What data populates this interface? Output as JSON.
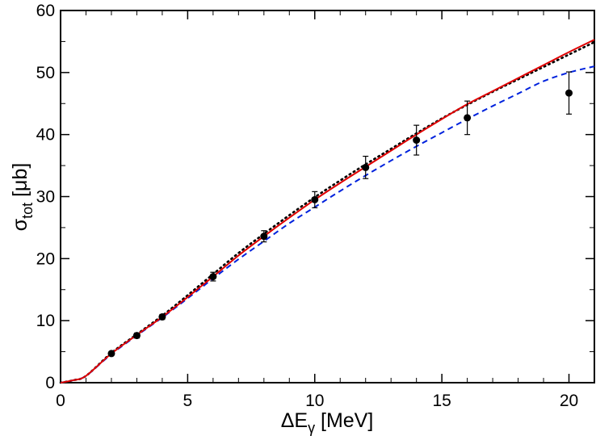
{
  "chart_data": {
    "type": "line",
    "title": "",
    "xlabel": {
      "main": "ΔE",
      "sub": "γ",
      "unit": " [MeV]"
    },
    "ylabel": {
      "main": "σ",
      "sub": "tot",
      "unit": " [μb]"
    },
    "xlim": [
      0,
      21
    ],
    "ylim": [
      0,
      60
    ],
    "x_ticks": [
      0,
      5,
      10,
      15,
      20
    ],
    "y_ticks": [
      0,
      10,
      20,
      30,
      40,
      50,
      60
    ],
    "x_tick_labels": [
      "0",
      "5",
      "10",
      "15",
      "20"
    ],
    "y_tick_labels": [
      "0",
      "10",
      "20",
      "30",
      "40",
      "50",
      "60"
    ],
    "grid": false,
    "legend": "none",
    "series": [
      {
        "style": "solid",
        "color": "#e00000",
        "x": [
          0,
          0.5,
          1,
          2,
          3,
          4,
          5,
          6,
          7,
          8,
          9,
          10,
          11,
          12,
          13,
          14,
          15,
          16,
          17,
          18,
          19,
          20,
          21
        ],
        "y": [
          0,
          0.4,
          1.1,
          4.7,
          7.7,
          10.6,
          13.8,
          17.1,
          20.5,
          23.6,
          26.6,
          29.5,
          32.2,
          34.8,
          37.4,
          40.0,
          42.5,
          44.9,
          47.0,
          49.1,
          51.2,
          53.3,
          55.3
        ]
      },
      {
        "style": "dotted",
        "color": "#000000",
        "x": [
          0,
          0.5,
          1,
          2,
          3,
          4,
          5,
          6,
          7,
          8,
          9,
          10,
          11,
          12,
          13,
          14,
          15,
          16,
          17,
          18,
          19,
          20,
          21
        ],
        "y": [
          0,
          0.4,
          1.1,
          4.8,
          7.8,
          10.8,
          14.1,
          17.5,
          20.9,
          24.0,
          27.0,
          29.9,
          32.6,
          35.2,
          37.7,
          40.2,
          42.6,
          44.8,
          46.9,
          48.9,
          50.9,
          52.9,
          54.9
        ]
      },
      {
        "style": "dashed",
        "color": "#0022dd",
        "x": [
          0,
          0.5,
          1,
          2,
          3,
          4,
          5,
          6,
          7,
          8,
          9,
          10,
          11,
          12,
          13,
          14,
          15,
          16,
          17,
          18,
          19,
          20,
          21
        ],
        "y": [
          0,
          0.4,
          1.1,
          4.6,
          7.6,
          10.5,
          13.6,
          16.8,
          19.9,
          22.8,
          25.7,
          28.3,
          30.9,
          33.4,
          35.8,
          38.1,
          40.3,
          42.5,
          44.6,
          46.6,
          48.6,
          50.0,
          51.0
        ]
      }
    ],
    "points": {
      "color": "#000000",
      "x": [
        2,
        3,
        4,
        6,
        8,
        10,
        12,
        14,
        16,
        20
      ],
      "y": [
        4.7,
        7.6,
        10.6,
        17.1,
        23.6,
        29.5,
        34.7,
        39.1,
        42.7,
        46.7
      ],
      "err": [
        0.3,
        0.4,
        0.4,
        0.7,
        0.9,
        1.3,
        1.8,
        2.4,
        2.7,
        3.4
      ]
    }
  }
}
